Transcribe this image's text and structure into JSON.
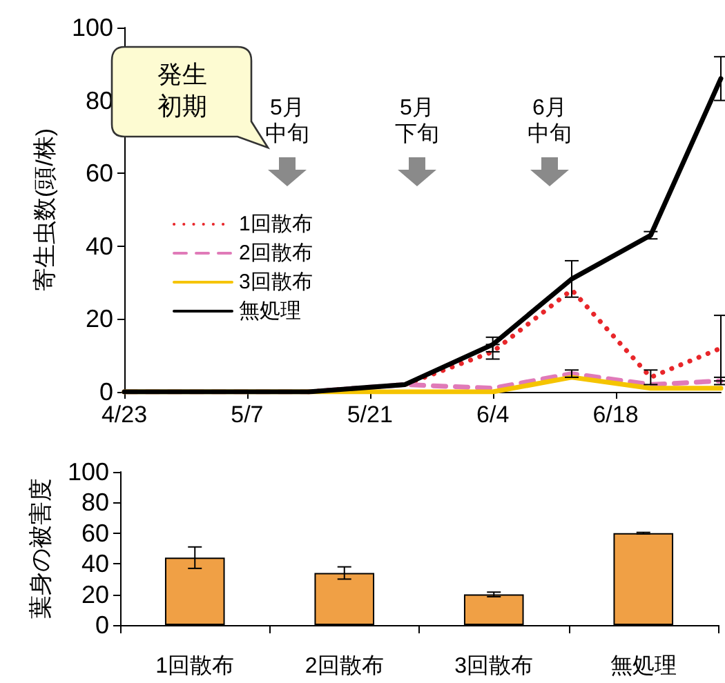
{
  "chart_data": [
    {
      "type": "line",
      "ylabel": "寄生虫数(頭/株)",
      "x": [
        "--04-23",
        "--05-07",
        "--05-14",
        "--05-25",
        "--06-04",
        "--06-13",
        "--06-22",
        "--06-30"
      ],
      "xlim": [
        "--04-23",
        "--06-30"
      ],
      "xticks": [
        {
          "value": "--04-23",
          "label": "4/23"
        },
        {
          "value": "--05-07",
          "label": "5/7"
        },
        {
          "value": "--05-21",
          "label": "5/21"
        },
        {
          "value": "--06-04",
          "label": "6/4"
        },
        {
          "value": "--06-18",
          "label": "6/18"
        }
      ],
      "ylim": [
        0,
        100
      ],
      "yticks": [
        0,
        20,
        40,
        60,
        80,
        100
      ],
      "series": [
        {
          "name": "1回散布",
          "color": "#e8262a",
          "line_style": "dotted",
          "values": [
            null,
            null,
            0,
            2,
            11,
            28,
            4,
            12
          ],
          "errors": [
            null,
            null,
            null,
            null,
            2,
            null,
            2,
            9
          ]
        },
        {
          "name": "2回散布",
          "color": "#e07ab8",
          "line_style": "dashed",
          "values": [
            0,
            0,
            0,
            2,
            1,
            5,
            2,
            3
          ],
          "errors": [
            null,
            null,
            null,
            null,
            null,
            1,
            null,
            1
          ]
        },
        {
          "name": "3回散布",
          "color": "#f5c400",
          "line_style": "solid",
          "values": [
            0,
            0,
            0,
            0,
            0,
            4,
            1,
            1
          ]
        },
        {
          "name": "無処理",
          "color": "#000000",
          "line_style": "solid",
          "values": [
            0,
            0,
            0,
            2,
            13,
            31,
            43,
            86
          ],
          "errors": [
            null,
            null,
            null,
            null,
            2,
            5,
            1,
            6
          ]
        }
      ],
      "marker": "none",
      "grid": false,
      "legend": "left",
      "annotations": [
        "発生初期",
        "5月中旬",
        "5月下旬",
        "6月中旬"
      ]
    },
    {
      "type": "bar",
      "ylabel": "葉身の被害度",
      "categories": [
        "1回散布",
        "2回散布",
        "3回散布",
        "無処理"
      ],
      "values": [
        44,
        34,
        20,
        60
      ],
      "errors": [
        7,
        4,
        1.5,
        0.5
      ],
      "color": "#f0a045",
      "ylim": [
        0,
        100
      ],
      "yticks": [
        0,
        20,
        40,
        60,
        80,
        100
      ],
      "grid": false
    }
  ]
}
